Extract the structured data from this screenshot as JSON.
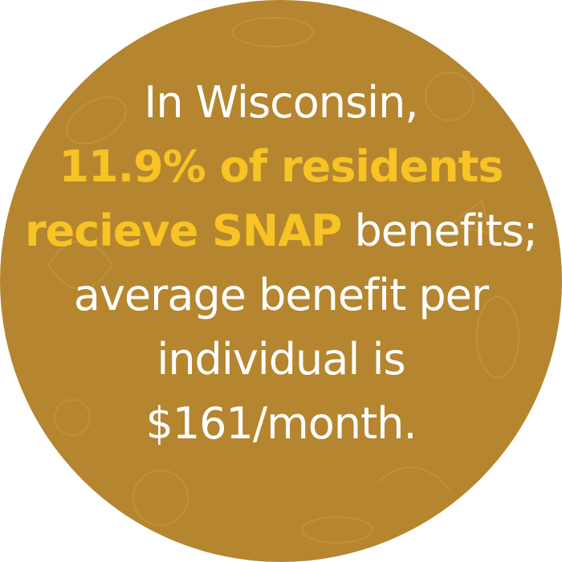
{
  "lines": [
    [
      {
        "text": "In Wisconsin,",
        "emphasis": false
      }
    ],
    [
      {
        "text": "11.9% of residents",
        "emphasis": true
      }
    ],
    [
      {
        "text": "recieve SNAP",
        "emphasis": true
      },
      {
        "text": "benefits;",
        "emphasis": false
      }
    ],
    [
      {
        "text": "average benefit per",
        "emphasis": false
      }
    ],
    [
      {
        "text": "individual is",
        "emphasis": false
      }
    ],
    [
      {
        "text": "$161/month.",
        "emphasis": false
      }
    ]
  ]
}
